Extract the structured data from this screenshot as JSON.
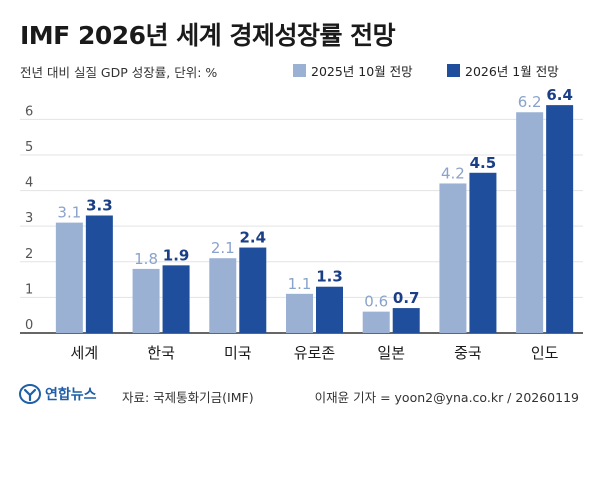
{
  "title": "IMF 2026년 세계 경제성장률 전망",
  "subtitle": "전년 대비 실질 GDP 성장률, 단위: %",
  "colors": {
    "series_1": "#9bb1d4",
    "series_2": "#1f4f9c",
    "label_1": "#8aa3cc",
    "label_2": "#1a3f86",
    "grid": "#e3e3e3",
    "axis": "#333333",
    "logo": "#1f5ea8"
  },
  "chart_data": {
    "type": "bar",
    "categories": [
      "세계",
      "한국",
      "미국",
      "유로존",
      "일본",
      "중국",
      "인도"
    ],
    "series": [
      {
        "name": "2025년 10월 전망",
        "values": [
          3.1,
          1.8,
          2.1,
          1.1,
          0.6,
          4.2,
          6.2
        ]
      },
      {
        "name": "2026년 1월 전망",
        "values": [
          3.3,
          1.9,
          2.4,
          1.3,
          0.7,
          4.5,
          6.4
        ]
      }
    ],
    "value_labels": [
      [
        "3.1",
        "1.8",
        "2.1",
        "1.1",
        "0.6",
        "4.2",
        "6.2"
      ],
      [
        "3.3",
        "1.9",
        "2.4",
        "1.3",
        "0.7",
        "4.5",
        "6.4"
      ]
    ],
    "y_ticks": [
      "0",
      "1",
      "2",
      "3",
      "4",
      "5",
      "6"
    ],
    "ylim": [
      0,
      6.6
    ],
    "xlabel": "",
    "ylabel": "",
    "grid": true,
    "legend_position": "top-right"
  },
  "footer": {
    "logo_text": "연합뉴스",
    "logo_icon": "yonhap-logo-icon",
    "source": "자료: 국제통화기금(IMF)",
    "credit": "이재윤 기자 = yoon2@yna.co.kr / 20260119"
  }
}
